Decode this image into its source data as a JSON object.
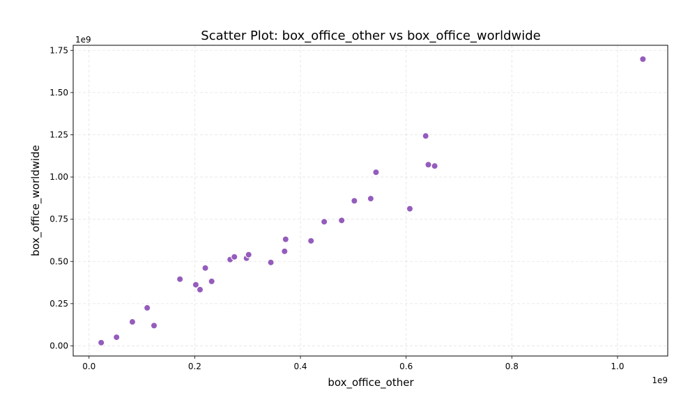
{
  "chart_data": {
    "type": "scatter",
    "title": "Scatter Plot: box_office_other vs box_office_worldwide",
    "xlabel": "box_office_other",
    "ylabel": "box_office_worldwide",
    "x_offset_label": "1e9",
    "y_offset_label": "1e9",
    "xlim": [
      -0.03,
      1.095
    ],
    "ylim": [
      -0.06,
      1.78
    ],
    "x_ticks": [
      0.0,
      0.2,
      0.4,
      0.6,
      0.8,
      1.0
    ],
    "x_tick_labels": [
      "0.0",
      "0.2",
      "0.4",
      "0.6",
      "0.8",
      "1.0"
    ],
    "y_ticks": [
      0.0,
      0.25,
      0.5,
      0.75,
      1.0,
      1.25,
      1.5,
      1.75
    ],
    "y_tick_labels": [
      "0.00",
      "0.25",
      "0.50",
      "0.75",
      "1.00",
      "1.25",
      "1.50",
      "1.75"
    ],
    "grid": true,
    "marker_color": "#8e53b8",
    "points": [
      {
        "x": 0.023,
        "y": 0.019
      },
      {
        "x": 0.052,
        "y": 0.051
      },
      {
        "x": 0.082,
        "y": 0.142
      },
      {
        "x": 0.11,
        "y": 0.225
      },
      {
        "x": 0.123,
        "y": 0.12
      },
      {
        "x": 0.172,
        "y": 0.395
      },
      {
        "x": 0.202,
        "y": 0.362
      },
      {
        "x": 0.21,
        "y": 0.333
      },
      {
        "x": 0.22,
        "y": 0.461
      },
      {
        "x": 0.232,
        "y": 0.382
      },
      {
        "x": 0.267,
        "y": 0.511
      },
      {
        "x": 0.275,
        "y": 0.527
      },
      {
        "x": 0.298,
        "y": 0.519
      },
      {
        "x": 0.302,
        "y": 0.54
      },
      {
        "x": 0.344,
        "y": 0.494
      },
      {
        "x": 0.37,
        "y": 0.56
      },
      {
        "x": 0.372,
        "y": 0.631
      },
      {
        "x": 0.42,
        "y": 0.622
      },
      {
        "x": 0.445,
        "y": 0.735
      },
      {
        "x": 0.478,
        "y": 0.743
      },
      {
        "x": 0.502,
        "y": 0.859
      },
      {
        "x": 0.533,
        "y": 0.872
      },
      {
        "x": 0.543,
        "y": 1.028
      },
      {
        "x": 0.607,
        "y": 0.812
      },
      {
        "x": 0.637,
        "y": 1.243
      },
      {
        "x": 0.642,
        "y": 1.073
      },
      {
        "x": 0.654,
        "y": 1.065
      },
      {
        "x": 1.048,
        "y": 1.698
      }
    ]
  }
}
